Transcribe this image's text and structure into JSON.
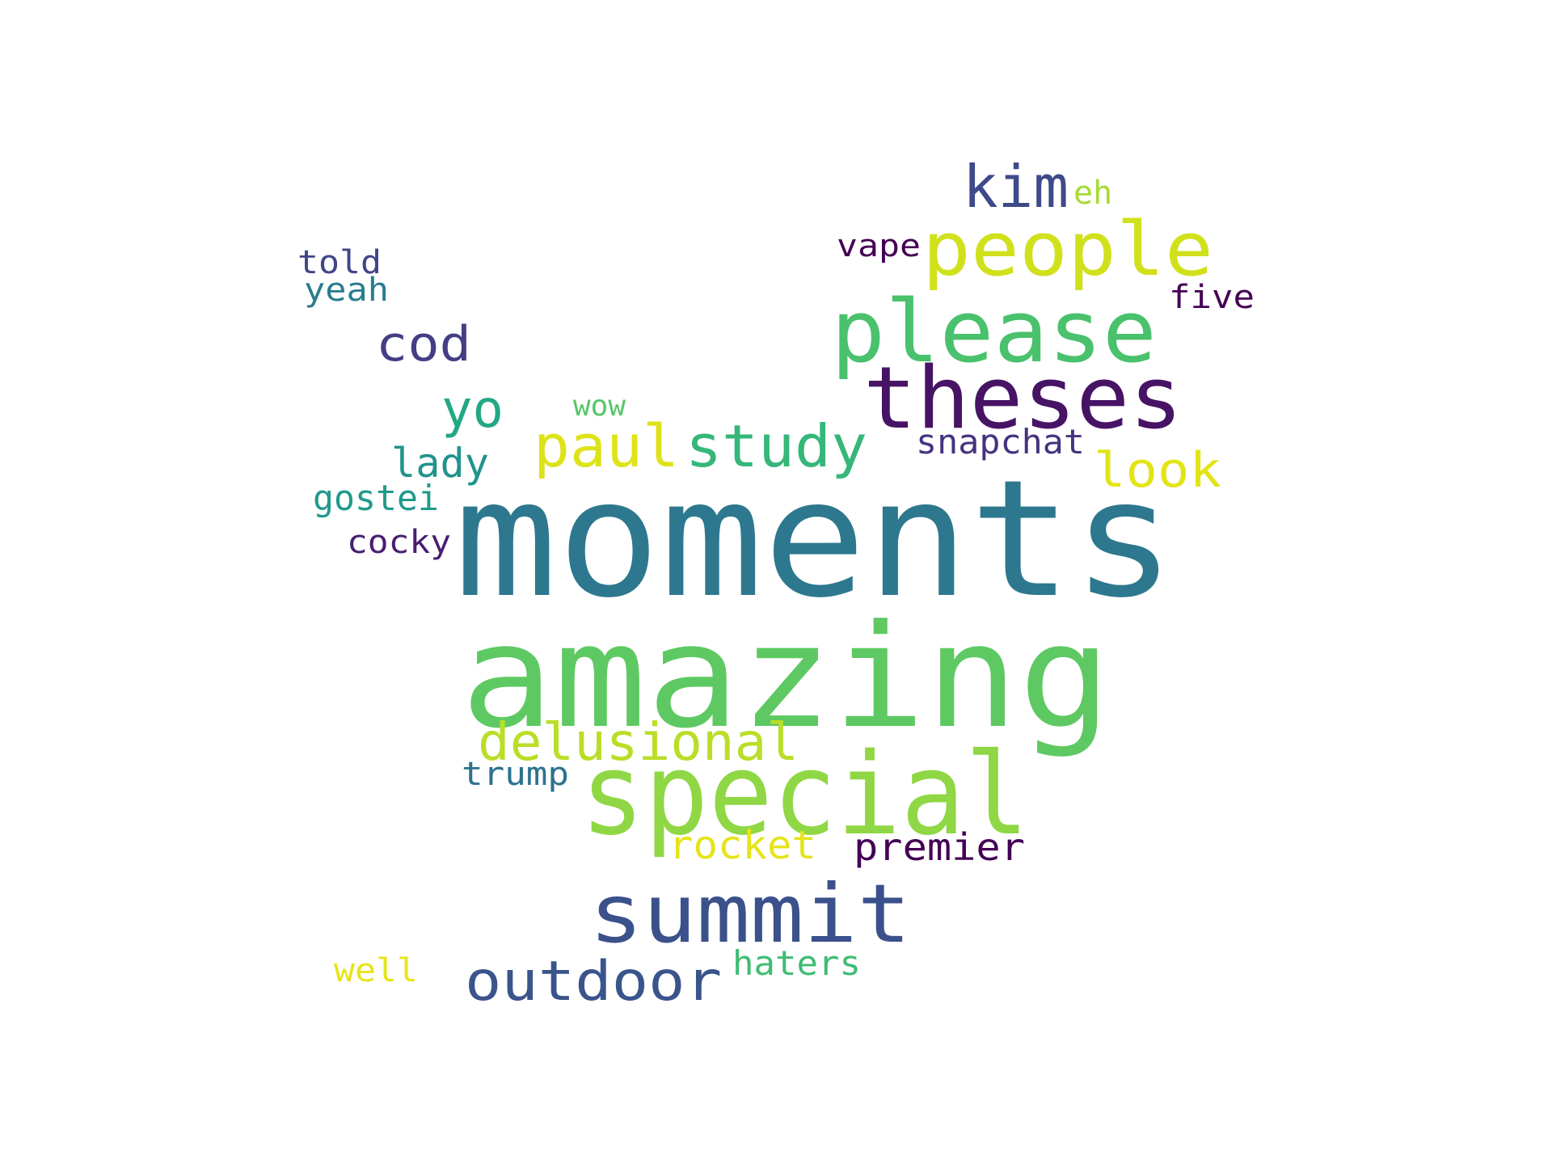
{
  "words": [
    {
      "text": "moments",
      "color": "#2d788e"
    },
    {
      "text": "amazing",
      "color": "#5ec962"
    },
    {
      "text": "special",
      "color": "#8fd744"
    },
    {
      "text": "theses",
      "color": "#471365"
    },
    {
      "text": "please",
      "color": "#4ac16d"
    },
    {
      "text": "people",
      "color": "#d0e11c"
    },
    {
      "text": "summit",
      "color": "#3b518b"
    },
    {
      "text": "outdoor",
      "color": "#3a548c"
    },
    {
      "text": "paul",
      "color": "#dde318"
    },
    {
      "text": "study",
      "color": "#35b779"
    },
    {
      "text": "kim",
      "color": "#3e4a89"
    },
    {
      "text": "cod",
      "color": "#433e85"
    },
    {
      "text": "yo",
      "color": "#22a884"
    },
    {
      "text": "look",
      "color": "#e2e418"
    },
    {
      "text": "delusional",
      "color": "#bade28"
    },
    {
      "text": "lady",
      "color": "#20938c"
    },
    {
      "text": "snapchat",
      "color": "#46337e"
    },
    {
      "text": "rocket",
      "color": "#e5e419"
    },
    {
      "text": "premier",
      "color": "#440154"
    },
    {
      "text": "haters",
      "color": "#3fbc73"
    },
    {
      "text": "trump",
      "color": "#2c728e"
    },
    {
      "text": "gostei",
      "color": "#1f9a8a"
    },
    {
      "text": "cocky",
      "color": "#481f70"
    },
    {
      "text": "told",
      "color": "#404588"
    },
    {
      "text": "yeah",
      "color": "#287d8e"
    },
    {
      "text": "vape",
      "color": "#440154"
    },
    {
      "text": "five",
      "color": "#440154"
    },
    {
      "text": "eh",
      "color": "#a8db34"
    },
    {
      "text": "wow",
      "color": "#56c667"
    },
    {
      "text": "well",
      "color": "#e7e419"
    }
  ]
}
